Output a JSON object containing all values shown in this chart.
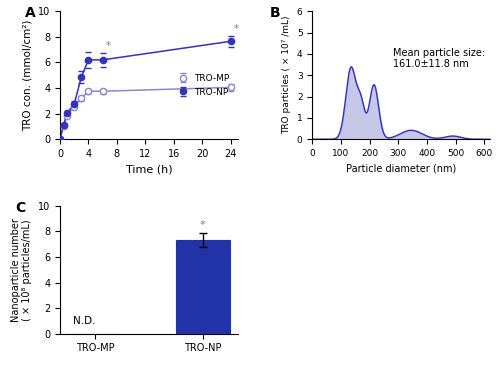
{
  "panel_A": {
    "label": "A",
    "time_MP": [
      0,
      0.5,
      1,
      2,
      3,
      4,
      6,
      24
    ],
    "mean_MP": [
      0,
      1.05,
      1.85,
      2.55,
      3.2,
      3.75,
      3.75,
      4.05
    ],
    "err_MP": [
      0,
      0.12,
      0.15,
      0.18,
      0.18,
      0.18,
      0.18,
      0.25
    ],
    "time_NP": [
      0,
      0.5,
      1,
      2,
      3,
      4,
      6,
      24
    ],
    "mean_NP": [
      0,
      1.1,
      2.05,
      2.75,
      4.85,
      6.2,
      6.2,
      7.65
    ],
    "err_NP": [
      0,
      0.12,
      0.18,
      0.22,
      0.45,
      0.65,
      0.55,
      0.45
    ],
    "star_indices_NP": [
      4,
      6,
      7
    ],
    "xlabel": "Time (h)",
    "ylabel": "TRO con. (mmol/cm²)",
    "xlim": [
      0,
      25
    ],
    "ylim": [
      0,
      10
    ],
    "xticks": [
      0,
      4,
      8,
      12,
      16,
      20,
      24
    ],
    "yticks": [
      0,
      2,
      4,
      6,
      8,
      10
    ],
    "color_MP_line": "#8888cc",
    "color_NP_line": "#3333bb",
    "legend_MP": "TRO-MP",
    "legend_NP": "TRO-NP"
  },
  "panel_B": {
    "label": "B",
    "xlabel": "Particle diameter (nm)",
    "ylabel": "TRO particles ( × 10⁷ /mL)",
    "xlim": [
      0,
      620
    ],
    "ylim": [
      0,
      6
    ],
    "xticks": [
      0,
      100,
      200,
      300,
      400,
      500,
      600
    ],
    "yticks": [
      0,
      1,
      2,
      3,
      4,
      5,
      6
    ],
    "annotation": "Mean particle size:\n161.0±11.8 nm",
    "fill_color": "#aaaadd",
    "line_color": "#3333bb",
    "peaks": [
      {
        "mu": 135,
        "sigma": 18,
        "amp": 3.35
      },
      {
        "mu": 170,
        "sigma": 13,
        "amp": 1.5
      },
      {
        "mu": 215,
        "sigma": 16,
        "amp": 2.55
      },
      {
        "mu": 345,
        "sigma": 38,
        "amp": 0.42
      },
      {
        "mu": 490,
        "sigma": 28,
        "amp": 0.15
      }
    ]
  },
  "panel_C": {
    "label": "C",
    "categories": [
      "TRO-MP",
      "TRO-NP"
    ],
    "values": [
      0,
      7.3
    ],
    "errors": [
      0,
      0.55
    ],
    "bar_color_NP": "#2233aa",
    "nd_label": "N.D.",
    "ylabel": "Nanoparticle number\n( × 10⁸ particles/mL)",
    "ylim": [
      0,
      10
    ],
    "yticks": [
      0,
      2,
      4,
      6,
      8,
      10
    ]
  }
}
